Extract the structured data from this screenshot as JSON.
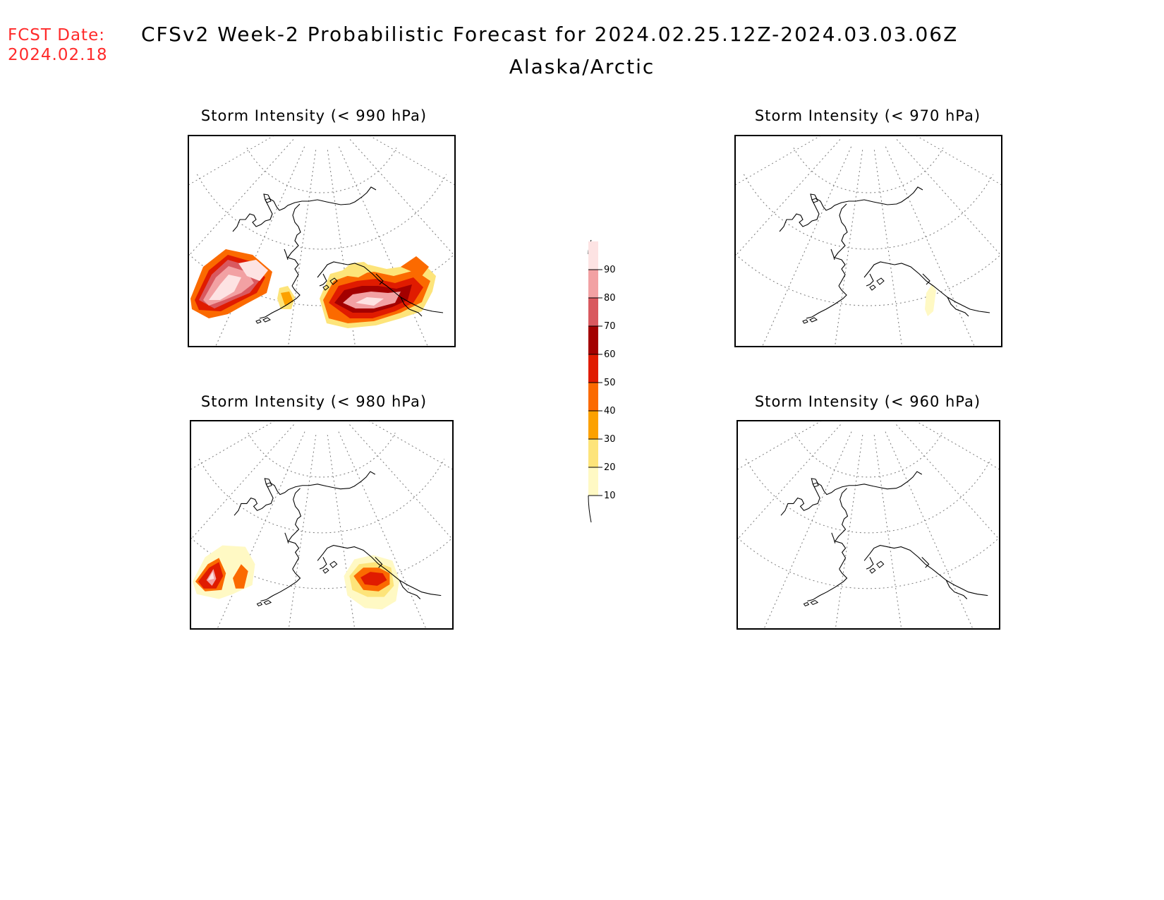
{
  "fcst_date": {
    "label": "FCST Date:",
    "value": "2024.02.18"
  },
  "title": "CFSv2 Week-2 Probabilistic Forecast for 2024.02.25.12Z-2024.03.03.06Z",
  "subtitle": "Alaska/Arctic",
  "panels": [
    {
      "title": "Storm Intensity (< 990 hPa)"
    },
    {
      "title": "Storm Intensity (< 970 hPa)"
    },
    {
      "title": "Storm Intensity (< 980 hPa)"
    },
    {
      "title": "Storm Intensity (< 960 hPa)"
    }
  ],
  "colorbar": {
    "levels": [
      "10",
      "20",
      "30",
      "40",
      "50",
      "60",
      "70",
      "80",
      "90"
    ],
    "colors": [
      "#fff9c4",
      "#fde47a",
      "#fca100",
      "#fb6a00",
      "#e01b00",
      "#a30000",
      "#d9595f",
      "#f2a1a3",
      "#fde3e3"
    ]
  }
}
